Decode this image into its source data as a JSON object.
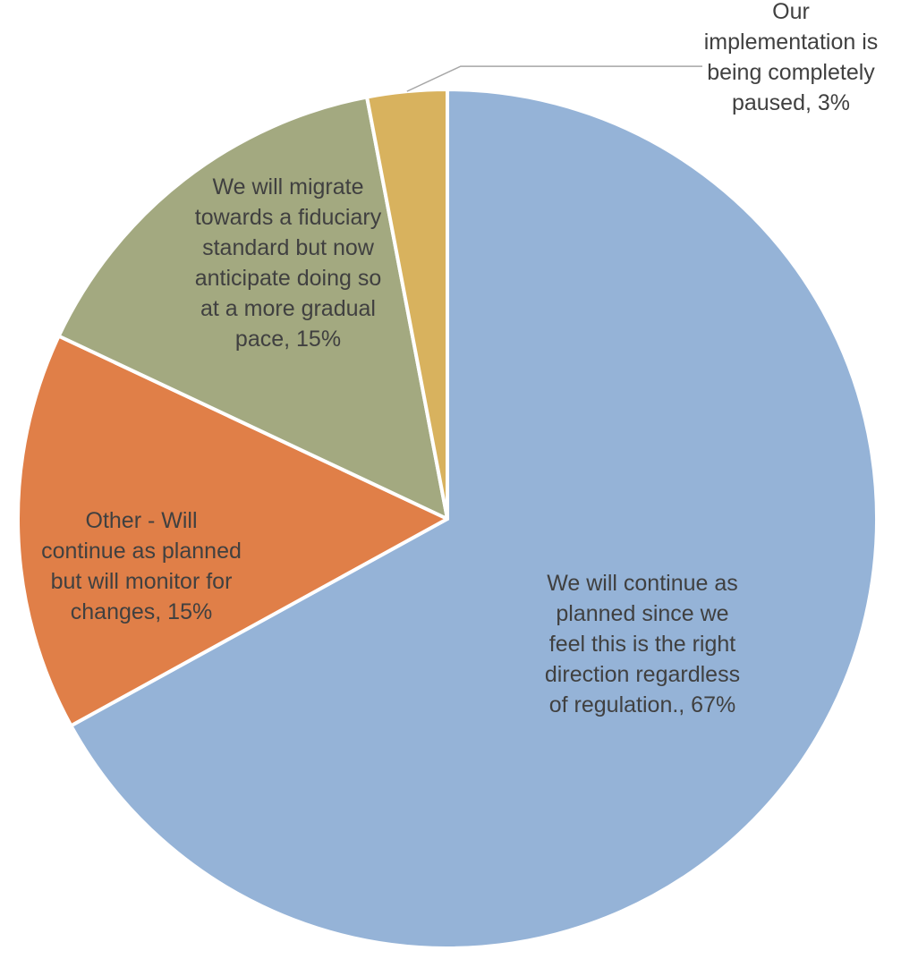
{
  "chart_data": {
    "type": "pie",
    "title": "",
    "start_angle_deg": 0,
    "direction": "clockwise",
    "legend": "none",
    "slices": [
      {
        "label": "We will continue as planned since we feel this is the right direction regardless of regulation.",
        "value": 67,
        "display_lines": [
          "We will continue as",
          "planned since we",
          "feel this is the right",
          "direction regardless",
          "of regulation., 67%"
        ],
        "color": "#95B3D7"
      },
      {
        "label": "Other - Will continue as planned but will monitor for changes",
        "value": 15,
        "display_lines": [
          "Other - Will",
          "continue as planned",
          "but will monitor for",
          "changes, 15%"
        ],
        "color": "#E07F48"
      },
      {
        "label": "We will migrate towards a fiduciary standard but now anticipate doing so at a more gradual pace",
        "value": 15,
        "display_lines": [
          "We will migrate",
          "towards a fiduciary",
          "standard but now",
          "anticipate doing so",
          "at a more gradual",
          "pace, 15%"
        ],
        "color": "#A3A980"
      },
      {
        "label": "Our implementation is being completely paused",
        "value": 3,
        "display_lines": [
          "Our",
          "implementation is",
          "being completely",
          "paused, 3%"
        ],
        "color": "#D8B25E"
      }
    ]
  }
}
